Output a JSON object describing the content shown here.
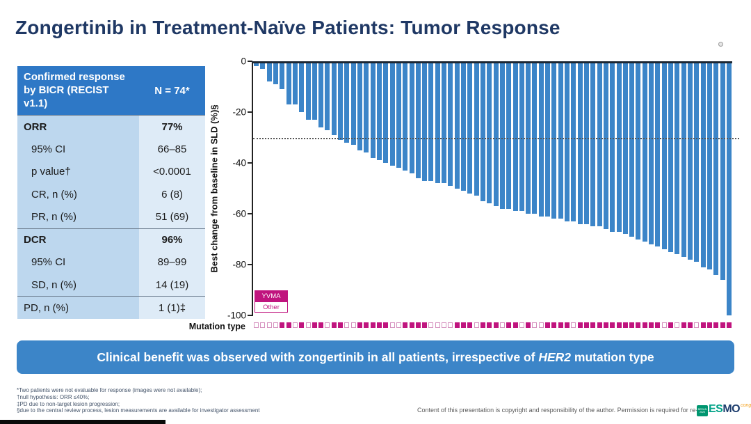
{
  "title": "Zongertinib in Treatment-Naïve Patients: Tumor Response",
  "table": {
    "header": {
      "label": "Confirmed response by BICR (RECIST v1.1)",
      "n": "N = 74*"
    },
    "rows": [
      {
        "label": "ORR",
        "value": "77%",
        "bold": true,
        "indent": false,
        "section": true
      },
      {
        "label": "95% CI",
        "value": "66–85",
        "bold": false,
        "indent": true,
        "section": false
      },
      {
        "label": "p value†",
        "value": "<0.0001",
        "bold": false,
        "indent": true,
        "section": false
      },
      {
        "label": "CR, n (%)",
        "value": "6 (8)",
        "bold": false,
        "indent": true,
        "section": false
      },
      {
        "label": "PR, n (%)",
        "value": "51 (69)",
        "bold": false,
        "indent": true,
        "section": false
      },
      {
        "label": "DCR",
        "value": "96%",
        "bold": true,
        "indent": false,
        "section": true
      },
      {
        "label": "95% CI",
        "value": "89–99",
        "bold": false,
        "indent": true,
        "section": false
      },
      {
        "label": "SD, n (%)",
        "value": "14 (19)",
        "bold": false,
        "indent": true,
        "section": false
      },
      {
        "label": "PD, n (%)",
        "value": "1 (1)‡",
        "bold": false,
        "indent": false,
        "section": true
      }
    ]
  },
  "chart_data": {
    "type": "bar",
    "title": "",
    "xlabel": "",
    "ylabel": "Best change from baseline in SLD (%)§",
    "ylim": [
      -100,
      0
    ],
    "yticks": [
      0,
      -20,
      -40,
      -60,
      -80,
      -100
    ],
    "reference_line": -30,
    "grid": false,
    "legend_position": "lower left",
    "legend": [
      {
        "label": "YVMA",
        "filled": true,
        "color": "#C0147E"
      },
      {
        "label": "Other",
        "filled": false,
        "color": "#FFFFFF"
      }
    ],
    "mutation_label": "Mutation type",
    "series": [
      {
        "name": "Best change from baseline in SLD (%)",
        "values": [
          -2,
          -3,
          -8,
          -9,
          -11,
          -17,
          -17,
          -20,
          -23,
          -23,
          -26,
          -27,
          -29,
          -31,
          -32,
          -33,
          -35,
          -36,
          -38,
          -39,
          -40,
          -41,
          -42,
          -43,
          -44,
          -46,
          -47,
          -47,
          -48,
          -48,
          -49,
          -50,
          -51,
          -52,
          -53,
          -55,
          -56,
          -57,
          -58,
          -58,
          -59,
          -59,
          -60,
          -60,
          -61,
          -61,
          -62,
          -62,
          -63,
          -63,
          -64,
          -64,
          -65,
          -65,
          -66,
          -67,
          -67,
          -68,
          -69,
          -70,
          -71,
          -72,
          -73,
          -74,
          -75,
          -76,
          -77,
          -78,
          -79,
          -81,
          -82,
          -84,
          -86,
          -100
        ]
      }
    ],
    "mutation_type": [
      "Other",
      "Other",
      "Other",
      "Other",
      "YVMA",
      "YVMA",
      "Other",
      "YVMA",
      "Other",
      "YVMA",
      "YVMA",
      "Other",
      "YVMA",
      "YVMA",
      "Other",
      "Other",
      "YVMA",
      "YVMA",
      "YVMA",
      "YVMA",
      "YVMA",
      "Other",
      "Other",
      "YVMA",
      "YVMA",
      "YVMA",
      "YVMA",
      "Other",
      "Other",
      "Other",
      "Other",
      "YVMA",
      "YVMA",
      "YVMA",
      "Other",
      "YVMA",
      "YVMA",
      "YVMA",
      "Other",
      "YVMA",
      "YVMA",
      "Other",
      "YVMA",
      "Other",
      "Other",
      "YVMA",
      "YVMA",
      "YVMA",
      "YVMA",
      "Other",
      "YVMA",
      "YVMA",
      "YVMA",
      "YVMA",
      "YVMA",
      "YVMA",
      "YVMA",
      "YVMA",
      "YVMA",
      "YVMA",
      "YVMA",
      "YVMA",
      "YVMA",
      "Other",
      "YVMA",
      "Other",
      "YVMA",
      "YVMA",
      "Other",
      "YVMA",
      "YVMA",
      "YVMA",
      "YVMA",
      "YVMA"
    ]
  },
  "banner": {
    "text_before": "Clinical benefit was observed with zongertinib in all patients, irrespective of ",
    "italic": "HER2",
    "text_after": " mutation type"
  },
  "footnotes": [
    "*Two patients were not evaluable for response (images were not available);",
    "†null hypothesis: ORR ≤40%;",
    "‡PD due to non-target lesion progression;",
    "§due to the central review process, lesion measurements are available for investigator assessment"
  ],
  "copyright": "Content of this presentation is copyright and responsibility of the author. Permission is required for re-use.",
  "logo": {
    "berlin": "BERLIN 2025",
    "esmo_left": "ES",
    "esmo_right": "MO",
    "congress": "congress"
  },
  "colors": {
    "title_navy": "#1F3864",
    "bar_blue": "#3C85C8",
    "banner_blue": "#3C85C8",
    "table_header_blue": "#2E78C6",
    "table_label_bg": "#BDD7EE",
    "table_value_bg": "#DEEBF7",
    "mutation_magenta": "#C0147E"
  }
}
